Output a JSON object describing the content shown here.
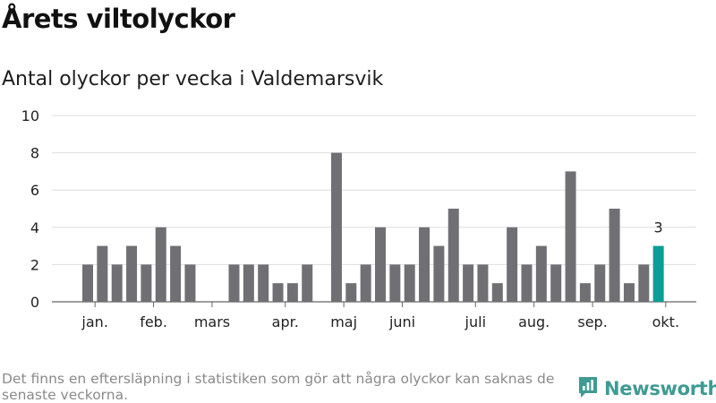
{
  "header": {
    "title": "Årets viltolyckor",
    "subtitle": "Antal olyckor per vecka i Valdemarsvik"
  },
  "footnote": "Det finns en eftersläpning i statistiken som gör att några olyckor kan saknas de senaste veckorna.",
  "brand": {
    "name": "Newsworthy",
    "icon": "bar-chart-logo-icon",
    "color": "#3e9b93"
  },
  "colors": {
    "bar": "#706f74",
    "highlight": "#0a9e96",
    "grid": "#dddddd"
  },
  "chart_data": {
    "type": "bar",
    "xlabel": "",
    "ylabel": "",
    "ylim": [
      0,
      10
    ],
    "yticks": [
      0,
      2,
      4,
      6,
      8,
      10
    ],
    "month_labels": [
      "jan.",
      "feb.",
      "mars",
      "apr.",
      "maj",
      "juni",
      "juli",
      "aug.",
      "sep.",
      "okt."
    ],
    "month_label_weeks": [
      1.5,
      5.5,
      9.5,
      14.5,
      18.5,
      22.5,
      27.5,
      31.5,
      35.5,
      40.5
    ],
    "weeks": [
      1,
      2,
      3,
      4,
      5,
      6,
      7,
      8,
      9,
      10,
      11,
      12,
      13,
      14,
      15,
      16,
      17,
      18,
      19,
      20,
      21,
      22,
      23,
      24,
      25,
      26,
      27,
      28,
      29,
      30,
      31,
      32,
      33,
      34,
      35,
      36,
      37,
      38,
      39,
      40
    ],
    "values": [
      2,
      3,
      2,
      3,
      2,
      4,
      3,
      2,
      0,
      0,
      2,
      2,
      2,
      1,
      1,
      2,
      0,
      8,
      1,
      2,
      4,
      2,
      2,
      4,
      3,
      5,
      2,
      2,
      1,
      4,
      2,
      3,
      2,
      7,
      1,
      2,
      5,
      1,
      2,
      3
    ],
    "highlight_index": 39,
    "highlight_label": "3"
  }
}
